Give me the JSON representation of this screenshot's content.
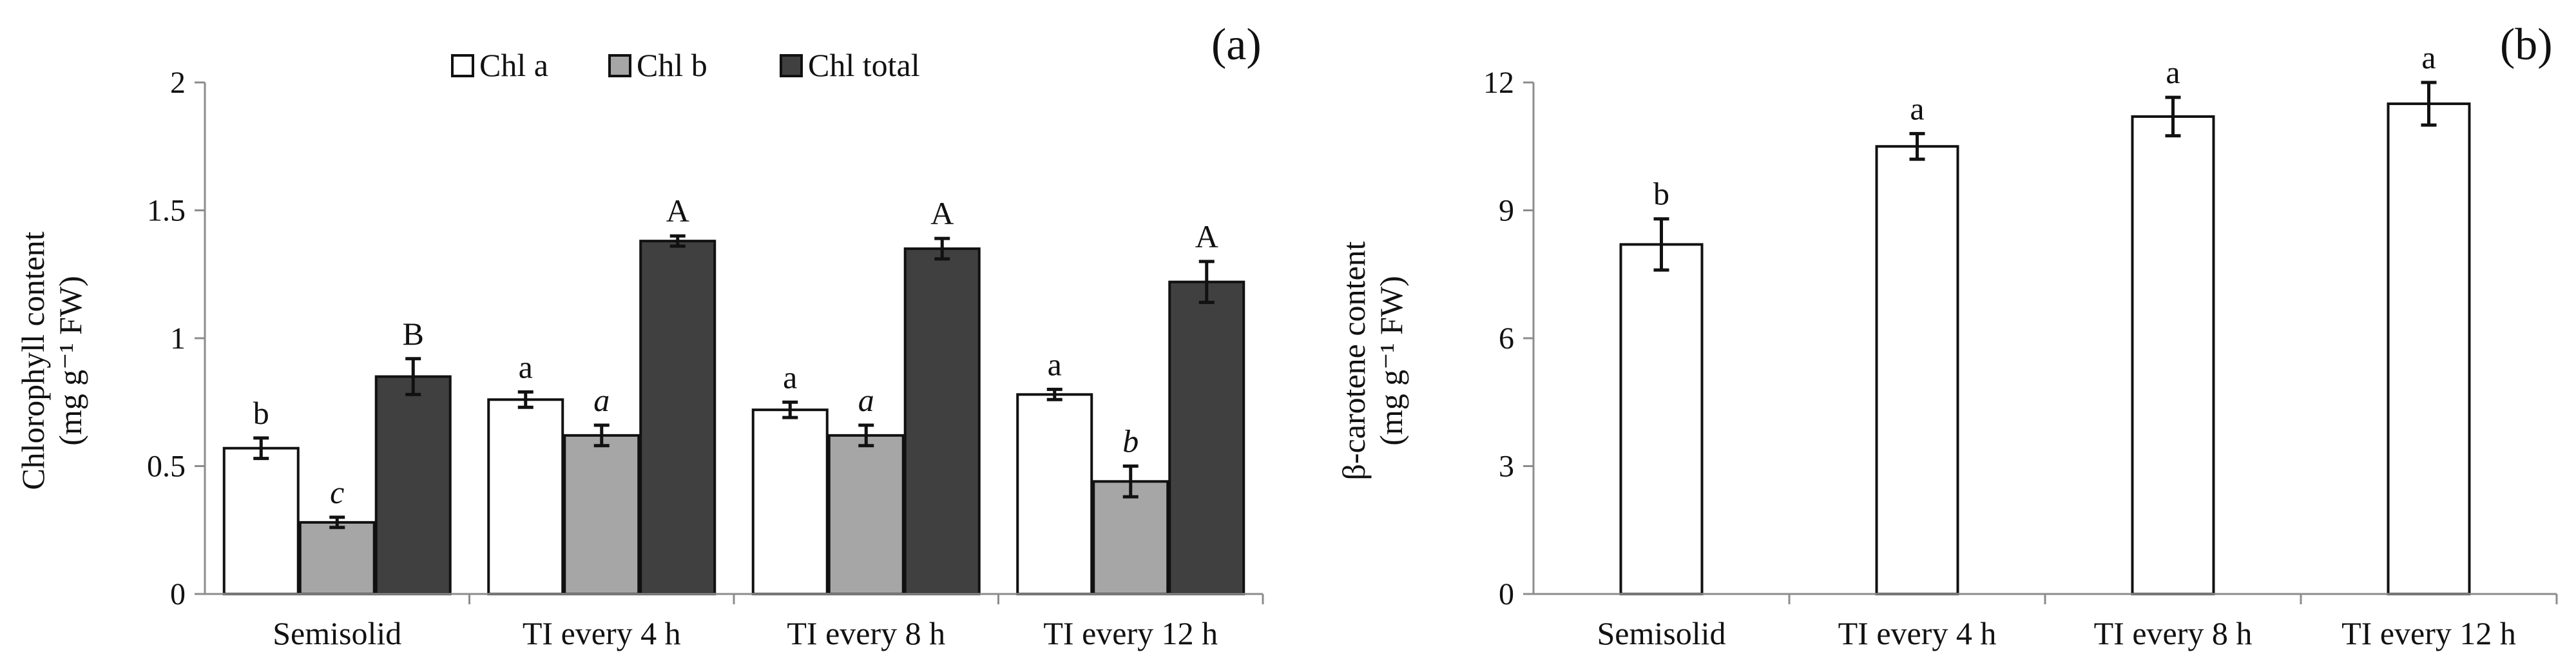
{
  "colors": {
    "chl_a": "#ffffff",
    "chl_b": "#a6a6a6",
    "chl_total": "#404040",
    "outline": "#111111",
    "axis": "#8c8c8c"
  },
  "chart_data": [
    {
      "type": "bar",
      "panel_label": "(a)",
      "ylabel_line1": "Chlorophyll content",
      "ylabel_line2": "(mg g⁻¹ FW)",
      "xlabel": "",
      "ylim": [
        0,
        2
      ],
      "yticks": [
        0,
        0.5,
        1,
        1.5,
        2
      ],
      "ytick_labels": [
        "0",
        "0.5",
        "1",
        "1.5",
        "2"
      ],
      "categories": [
        "Semisolid",
        "TI every 4 h",
        "TI every 8 h",
        "TI every 12 h"
      ],
      "legend_position": "top-center",
      "series": [
        {
          "name": "Chl a",
          "color_key": "chl_a",
          "values": [
            0.57,
            0.76,
            0.72,
            0.78
          ],
          "errors": [
            0.04,
            0.03,
            0.03,
            0.02
          ],
          "letters": [
            "b",
            "a",
            "a",
            "a"
          ],
          "letter_style": "normal"
        },
        {
          "name": "Chl b",
          "color_key": "chl_b",
          "values": [
            0.28,
            0.62,
            0.62,
            0.44
          ],
          "errors": [
            0.02,
            0.04,
            0.04,
            0.06
          ],
          "letters": [
            "c",
            "a",
            "a",
            "b"
          ],
          "letter_style": "italic"
        },
        {
          "name": "Chl total",
          "color_key": "chl_total",
          "values": [
            0.85,
            1.38,
            1.35,
            1.22
          ],
          "errors": [
            0.07,
            0.02,
            0.04,
            0.08
          ],
          "letters": [
            "B",
            "A",
            "A",
            "A"
          ],
          "letter_style": "normal"
        }
      ]
    },
    {
      "type": "bar",
      "panel_label": "(b)",
      "ylabel_line1": "β-carotene content",
      "ylabel_line2": "(mg g⁻¹ FW)",
      "xlabel": "",
      "ylim": [
        0,
        12
      ],
      "yticks": [
        0,
        3,
        6,
        9,
        12
      ],
      "ytick_labels": [
        "0",
        "3",
        "6",
        "9",
        "12"
      ],
      "categories": [
        "Semisolid",
        "TI every 4 h",
        "TI every 8 h",
        "TI every 12 h"
      ],
      "series": [
        {
          "name": "β-carotene",
          "color_key": "chl_a",
          "values": [
            8.2,
            10.5,
            11.2,
            11.5
          ],
          "errors": [
            0.6,
            0.3,
            0.45,
            0.5
          ],
          "letters": [
            "b",
            "a",
            "a",
            "a"
          ],
          "letter_style": "normal"
        }
      ]
    }
  ]
}
